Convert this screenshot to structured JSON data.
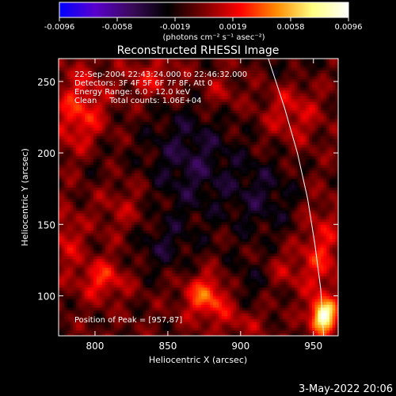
{
  "colorbar": {
    "tick_labels": [
      "-0.0096",
      "-0.0058",
      "-0.0019",
      "0.0019",
      "0.0058",
      "0.0096"
    ],
    "range": [
      -0.0096,
      0.0096
    ],
    "units": "(photons cm⁻² s⁻¹ asec⁻²)",
    "colors": [
      "#0000ff",
      "#5a00cc",
      "#3a0a5a",
      "#000000",
      "#7a0000",
      "#ff0000",
      "#ff8a00",
      "#ffff80",
      "#ffffff"
    ]
  },
  "chart_data": {
    "type": "heatmap",
    "title": "Reconstructed RHESSI Image",
    "xlabel": "Heliocentric X (arcsec)",
    "ylabel": "Heliocentric Y (arcsec)",
    "xlim": [
      775,
      967
    ],
    "ylim": [
      72,
      266
    ],
    "x_ticks": [
      800,
      850,
      900,
      950
    ],
    "y_ticks": [
      100,
      150,
      200,
      250
    ],
    "annotations": [
      "22-Sep-2004 22:43:24.000 to 22:46:32.000",
      "Detectors: 3F 4F 5F 6F 7F 8F, Att 0",
      "Energy Range: 6.0 - 12.0 keV",
      "Clean     Total counts: 1.06E+04"
    ],
    "peak_label": "Position of Peak = [957,87]",
    "peak": {
      "x": 957,
      "y": 87
    },
    "blobs": [
      {
        "x": 957,
        "y": 86,
        "sx": 6,
        "sy": 8,
        "a": 0.0096
      },
      {
        "x": 877,
        "y": 100,
        "sx": 11,
        "sy": 11,
        "a": 0.0048
      },
      {
        "x": 805,
        "y": 112,
        "sx": 12,
        "sy": 10,
        "a": 0.0034
      },
      {
        "x": 790,
        "y": 228,
        "sx": 12,
        "sy": 22,
        "a": 0.0036
      },
      {
        "x": 840,
        "y": 252,
        "sx": 14,
        "sy": 10,
        "a": 0.0026
      },
      {
        "x": 955,
        "y": 130,
        "sx": 10,
        "sy": 24,
        "a": 0.003
      },
      {
        "x": 935,
        "y": 228,
        "sx": 14,
        "sy": 16,
        "a": 0.0024
      },
      {
        "x": 885,
        "y": 242,
        "sx": 10,
        "sy": 10,
        "a": 0.0018
      },
      {
        "x": 820,
        "y": 160,
        "sx": 14,
        "sy": 16,
        "a": 0.0016
      },
      {
        "x": 780,
        "y": 140,
        "sx": 8,
        "sy": 14,
        "a": 0.0024
      },
      {
        "x": 930,
        "y": 118,
        "sx": 10,
        "sy": 10,
        "a": 0.0018
      },
      {
        "x": 900,
        "y": 82,
        "sx": 12,
        "sy": 8,
        "a": 0.0016
      },
      {
        "x": 865,
        "y": 195,
        "sx": 22,
        "sy": 30,
        "a": -0.0028
      },
      {
        "x": 915,
        "y": 170,
        "sx": 18,
        "sy": 22,
        "a": -0.0022
      },
      {
        "x": 845,
        "y": 135,
        "sx": 16,
        "sy": 14,
        "a": -0.002
      },
      {
        "x": 905,
        "y": 110,
        "sx": 14,
        "sy": 12,
        "a": -0.0016
      },
      {
        "x": 800,
        "y": 195,
        "sx": 10,
        "sy": 14,
        "a": -0.0012
      },
      {
        "x": 935,
        "y": 260,
        "sx": 14,
        "sy": 8,
        "a": -0.0012
      }
    ],
    "limb": [
      [
        919,
        266
      ],
      [
        930,
        232
      ],
      [
        939,
        200
      ],
      [
        946,
        168
      ],
      [
        951,
        136
      ],
      [
        955,
        105
      ],
      [
        957,
        72
      ]
    ]
  },
  "footer": {
    "timestamp": "3-May-2022 20:06"
  }
}
